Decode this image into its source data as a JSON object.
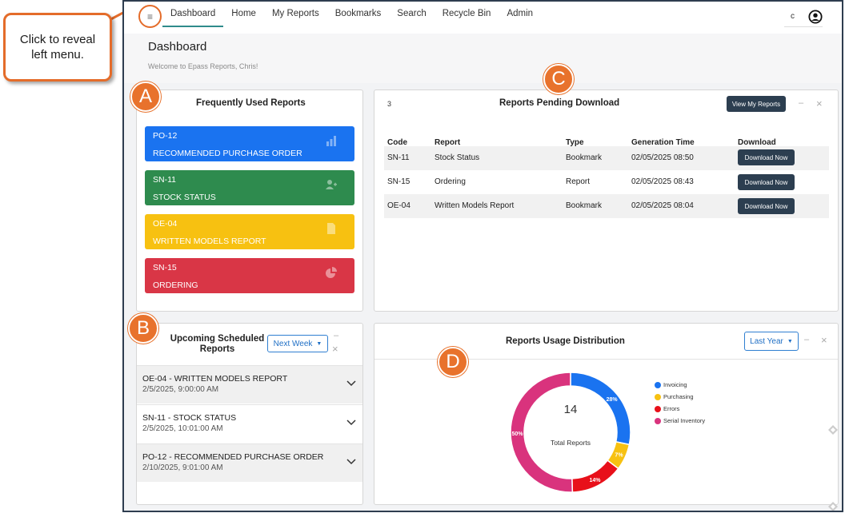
{
  "callout": {
    "text": "Click to reveal left menu."
  },
  "nav": {
    "menu_icon": "menu-icon",
    "items": [
      "Dashboard",
      "Home",
      "My Reports",
      "Bookmarks",
      "Search",
      "Recycle Bin",
      "Admin"
    ],
    "active": "Dashboard",
    "user_initial": "c"
  },
  "header": {
    "title": "Dashboard",
    "welcome": "Welcome to Epass Reports, Chris!"
  },
  "badges": {
    "a": "A",
    "b": "B",
    "c": "C",
    "d": "D"
  },
  "frequent": {
    "title": "Frequently Used Reports",
    "tiles": [
      {
        "code": "PO-12",
        "name": "RECOMMENDED PURCHASE ORDER",
        "color": "#1a73f0",
        "icon": "bar-chart-icon"
      },
      {
        "code": "SN-11",
        "name": "STOCK STATUS",
        "color": "#2e8b4e",
        "icon": "user-add-icon"
      },
      {
        "code": "OE-04",
        "name": "WRITTEN MODELS REPORT",
        "color": "#f7c111",
        "icon": "document-icon"
      },
      {
        "code": "SN-15",
        "name": "ORDERING",
        "color": "#d93646",
        "icon": "pie-chart-icon"
      }
    ]
  },
  "pending": {
    "count": "3",
    "title": "Reports Pending Download",
    "view_button": "View My Reports",
    "minimize": "–",
    "close": "×",
    "columns": [
      "Code",
      "Report",
      "Type",
      "Generation Time",
      "Download"
    ],
    "rows": [
      {
        "code": "SN-11",
        "report": "Stock Status",
        "type": "Bookmark",
        "time": "02/05/2025 08:50",
        "action": "Download Now"
      },
      {
        "code": "SN-15",
        "report": "Ordering",
        "type": "Report",
        "time": "02/05/2025 08:43",
        "action": "Download Now"
      },
      {
        "code": "OE-04",
        "report": "Written Models Report",
        "type": "Bookmark",
        "time": "02/05/2025 08:04",
        "action": "Download Now"
      }
    ]
  },
  "upcoming": {
    "title_line1": "Upcoming Scheduled",
    "title_line2": "Reports",
    "filter": "Next Week",
    "minimize": "–",
    "close": "×",
    "items": [
      {
        "title": "OE-04 - WRITTEN MODELS REPORT",
        "date": "2/5/2025, 9:00:00 AM"
      },
      {
        "title": "SN-11 - STOCK STATUS",
        "date": "2/5/2025, 10:01:00 AM"
      },
      {
        "title": "PO-12 - RECOMMENDED PURCHASE ORDER",
        "date": "2/10/2025, 9:01:00 AM"
      }
    ]
  },
  "usage": {
    "title": "Reports Usage Distribution",
    "filter": "Last Year",
    "minimize": "–",
    "close": "×",
    "center_value": "14",
    "center_label": "Total Reports"
  },
  "chart_data": {
    "type": "pie",
    "categories": [
      "Invoicing",
      "Purchasing",
      "Errors",
      "Serial Inventory"
    ],
    "values": [
      28,
      7,
      14,
      50
    ],
    "labels": [
      "28%",
      "7%",
      "14%",
      "50%"
    ],
    "colors": [
      "#1a73f0",
      "#f7c111",
      "#e8101a",
      "#d9337d"
    ],
    "donut": true,
    "legend": "right"
  }
}
